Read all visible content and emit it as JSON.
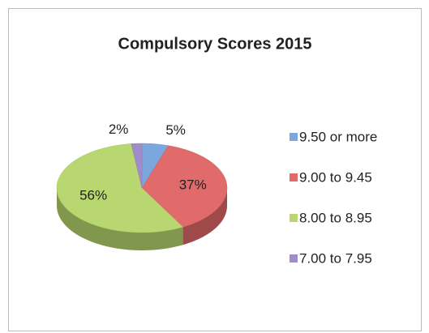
{
  "chart_data": {
    "type": "pie",
    "title": "Compulsory Scores 2015",
    "categories": [
      "9.50 or more",
      "9.00 to 9.45",
      "8.00 to 8.95",
      "7.00 to 7.95"
    ],
    "values": [
      5,
      37,
      56,
      2
    ],
    "value_labels": [
      "5%",
      "37%",
      "56%",
      "2%"
    ],
    "colors": [
      "#7ba7de",
      "#e16a6a",
      "#b9d770",
      "#a18cca"
    ],
    "legend": "right"
  }
}
